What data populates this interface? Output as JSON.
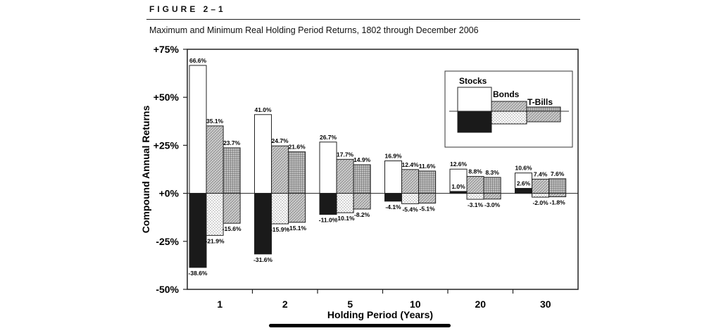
{
  "figure_label": "FIGURE 2–1",
  "subtitle": "Maximum and Minimum Real Holding Period Returns, 1802 through December 2006",
  "chart_data": {
    "type": "bar",
    "title": "Maximum and Minimum Real Holding Period Returns, 1802 through December 2006",
    "xlabel": "Holding Period (Years)",
    "ylabel": "Compound Annual Returns",
    "ylim": [
      -50,
      75
    ],
    "yticks": [
      75,
      50,
      25,
      0,
      -25,
      -50
    ],
    "ytick_labels": [
      "+75%",
      "+50%",
      "+25%",
      "+0%",
      "-25%",
      "-50%"
    ],
    "categories": [
      "1",
      "2",
      "5",
      "10",
      "20",
      "30"
    ],
    "legend": {
      "position": "top-right",
      "entries": [
        "Stocks",
        "Bonds",
        "T-Bills"
      ]
    },
    "series": [
      {
        "name": "Stocks",
        "max": [
          66.6,
          41.0,
          26.7,
          16.9,
          12.6,
          10.6
        ],
        "min": [
          -38.6,
          -31.6,
          -11.0,
          -4.1,
          1.0,
          2.6
        ],
        "max_labels": [
          "66.6%",
          "41.0%",
          "26.7%",
          "16.9%",
          "12.6%",
          "10.6%"
        ],
        "min_labels": [
          "-38.6%",
          "-31.6%",
          "-11.0%",
          "-4.1%",
          "1.0%",
          "2.6%"
        ]
      },
      {
        "name": "Bonds",
        "max": [
          35.1,
          24.7,
          17.7,
          12.4,
          8.8,
          7.4
        ],
        "min": [
          -21.9,
          -15.9,
          -10.1,
          -5.4,
          -3.1,
          -2.0
        ],
        "max_labels": [
          "35.1%",
          "24.7%",
          "17.7%",
          "12.4%",
          "8.8%",
          "7.4%"
        ],
        "min_labels": [
          "-21.9%",
          "-15.9%",
          "-10.1%",
          "-5.4%",
          "-3.1%",
          "-2.0%"
        ]
      },
      {
        "name": "T-Bills",
        "max": [
          23.7,
          21.6,
          14.9,
          11.6,
          8.3,
          7.6
        ],
        "min": [
          -15.6,
          -15.1,
          -8.2,
          -5.1,
          -3.0,
          -1.8
        ],
        "max_labels": [
          "23.7%",
          "21.6%",
          "14.9%",
          "11.6%",
          "8.3%",
          "7.6%"
        ],
        "min_labels": [
          "-15.6%",
          "-15.1%",
          "-8.2%",
          "-5.1%",
          "-3.0%",
          "-1.8%"
        ]
      }
    ],
    "colors": {
      "stocks_max": "#ffffff",
      "stocks_min": "#1a1a1a",
      "bonds": "#b8b8b8",
      "tbills": "#8a8a8a"
    }
  }
}
